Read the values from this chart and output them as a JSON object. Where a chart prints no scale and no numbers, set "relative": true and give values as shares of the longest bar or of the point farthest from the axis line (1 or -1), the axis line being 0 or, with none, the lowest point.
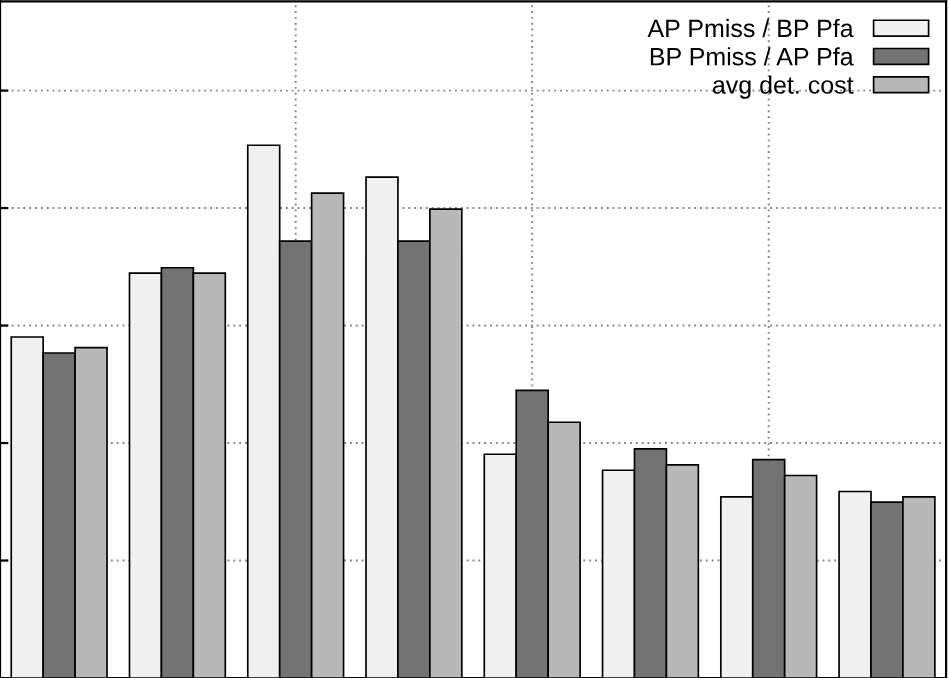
{
  "chart_data": {
    "type": "bar",
    "relative": true,
    "categories": [
      null,
      null,
      null,
      null,
      null,
      null,
      null,
      null
    ],
    "series": [
      {
        "name": "AP Pmiss / BP Pfa",
        "color": "#f0f0f0",
        "values": [
          0.64,
          0.76,
          1,
          0.94,
          0.42,
          0.39,
          0.34,
          0.35
        ]
      },
      {
        "name": "BP Pmiss / AP Pfa",
        "color": "#737373",
        "values": [
          0.61,
          0.77,
          0.82,
          0.82,
          0.54,
          0.43,
          0.41,
          0.33
        ]
      },
      {
        "name": "avg det. cost",
        "color": "#b8b8b8",
        "values": [
          0.62,
          0.76,
          0.91,
          0.88,
          0.48,
          0.4,
          0.38,
          0.34
        ]
      }
    ],
    "grid": true,
    "legend": "top right"
  }
}
